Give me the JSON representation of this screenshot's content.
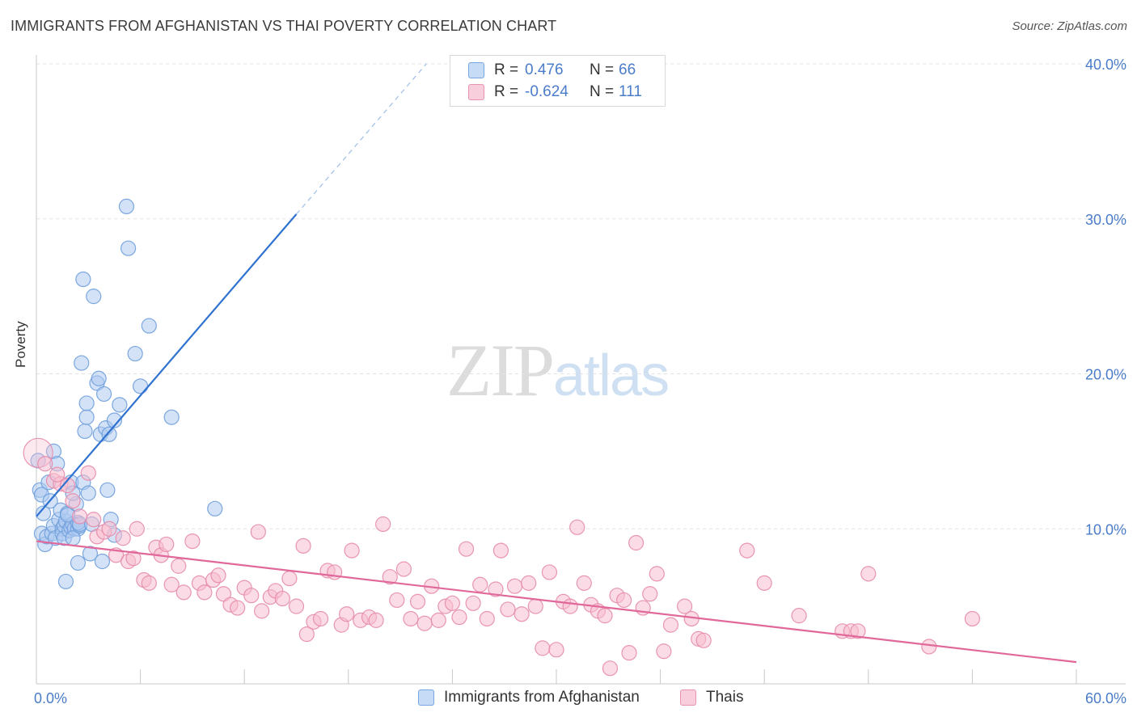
{
  "header": {
    "title": "IMMIGRANTS FROM AFGHANISTAN VS THAI POVERTY CORRELATION CHART",
    "source": "Source: ZipAtlas.com"
  },
  "watermark": {
    "part1": "ZIP",
    "part2": "atlas"
  },
  "legend": {
    "rows": [
      {
        "r_label": "R =",
        "r_value": "0.476",
        "n_label": "N =",
        "n_value": "66"
      },
      {
        "r_label": "R =",
        "r_value": "-0.624",
        "n_label": "N =",
        "n_value": "111"
      }
    ]
  },
  "colors": {
    "blue_fill": "#aecbf0",
    "blue_stroke": "#6f9fdc",
    "blue_line": "#2f72d0",
    "pink_fill": "#f7bdd0",
    "pink_stroke": "#e68bab",
    "pink_line": "#e0689a",
    "grid": "#e3e3e3",
    "axis_text": "#4a7cc9"
  },
  "chart_data": {
    "type": "scatter",
    "title": "IMMIGRANTS FROM AFGHANISTAN VS THAI POVERTY CORRELATION CHART",
    "xlabel": "",
    "ylabel": "Poverty",
    "xlim": [
      0,
      60
    ],
    "ylim": [
      0,
      40
    ],
    "x_tick_labels": [
      "0.0%",
      "60.0%"
    ],
    "y_ticks": [
      10,
      20,
      30,
      40
    ],
    "y_tick_labels": [
      "10.0%",
      "20.0%",
      "30.0%",
      "40.0%"
    ],
    "grid": true,
    "legend_position": "top-center",
    "series": [
      {
        "name": "Immigrants from Afghanistan",
        "color": "#aecbf0",
        "trend": {
          "x": [
            0,
            15
          ],
          "y": [
            10.8,
            30.3
          ],
          "dashed_to": [
            22.5,
            40.0
          ]
        },
        "points": [
          [
            0.1,
            14.4
          ],
          [
            0.2,
            12.5
          ],
          [
            0.3,
            12.2
          ],
          [
            0.3,
            9.7
          ],
          [
            0.4,
            11.0
          ],
          [
            0.5,
            9.0
          ],
          [
            0.6,
            9.5
          ],
          [
            0.7,
            13.0
          ],
          [
            0.8,
            11.8
          ],
          [
            0.9,
            9.7
          ],
          [
            1.0,
            15.0
          ],
          [
            1.0,
            10.2
          ],
          [
            1.1,
            9.4
          ],
          [
            1.2,
            14.2
          ],
          [
            1.3,
            10.6
          ],
          [
            1.4,
            11.2
          ],
          [
            1.5,
            10.0
          ],
          [
            1.5,
            9.7
          ],
          [
            1.6,
            10.2
          ],
          [
            1.6,
            9.4
          ],
          [
            1.7,
            10.5
          ],
          [
            1.8,
            11.0
          ],
          [
            1.9,
            9.9
          ],
          [
            1.7,
            6.6
          ],
          [
            2.0,
            10.1
          ],
          [
            2.1,
            10.3
          ],
          [
            2.2,
            10.0
          ],
          [
            2.3,
            11.6
          ],
          [
            2.4,
            10.0
          ],
          [
            2.1,
            9.4
          ],
          [
            2.0,
            13.0
          ],
          [
            2.1,
            12.3
          ],
          [
            2.5,
            10.2
          ],
          [
            2.6,
            20.7
          ],
          [
            2.4,
            7.8
          ],
          [
            2.4,
            10.4
          ],
          [
            2.5,
            10.3
          ],
          [
            2.7,
            26.1
          ],
          [
            2.7,
            13.0
          ],
          [
            2.8,
            16.3
          ],
          [
            2.9,
            17.2
          ],
          [
            2.9,
            18.1
          ],
          [
            3.1,
            8.4
          ],
          [
            3.2,
            10.3
          ],
          [
            3.3,
            25.0
          ],
          [
            3.5,
            19.4
          ],
          [
            3.6,
            19.7
          ],
          [
            3.7,
            16.1
          ],
          [
            3.8,
            7.9
          ],
          [
            3.9,
            18.7
          ],
          [
            4.0,
            16.5
          ],
          [
            4.1,
            12.5
          ],
          [
            4.2,
            16.1
          ],
          [
            4.3,
            10.6
          ],
          [
            4.5,
            17.0
          ],
          [
            4.5,
            9.6
          ],
          [
            4.8,
            18.0
          ],
          [
            5.2,
            30.8
          ],
          [
            5.3,
            28.1
          ],
          [
            5.7,
            21.3
          ],
          [
            6.0,
            19.2
          ],
          [
            6.5,
            23.1
          ],
          [
            7.8,
            17.2
          ],
          [
            10.3,
            11.3
          ],
          [
            3.0,
            12.3
          ],
          [
            1.8,
            10.9
          ]
        ]
      },
      {
        "name": "Thais",
        "color": "#f7bdd0",
        "trend": {
          "x": [
            0,
            60
          ],
          "y": [
            9.2,
            1.4
          ]
        },
        "points": [
          [
            0.1,
            14.9
          ],
          [
            0.5,
            14.2
          ],
          [
            1.0,
            13.1
          ],
          [
            1.4,
            12.9
          ],
          [
            1.8,
            12.8
          ],
          [
            1.2,
            13.5
          ],
          [
            3.0,
            13.6
          ],
          [
            2.1,
            11.8
          ],
          [
            2.5,
            10.8
          ],
          [
            3.3,
            10.6
          ],
          [
            3.5,
            9.5
          ],
          [
            3.9,
            9.8
          ],
          [
            4.2,
            10.0
          ],
          [
            4.6,
            8.3
          ],
          [
            5.0,
            9.4
          ],
          [
            5.3,
            7.9
          ],
          [
            5.6,
            8.1
          ],
          [
            5.8,
            10.0
          ],
          [
            6.2,
            6.7
          ],
          [
            6.5,
            6.5
          ],
          [
            6.9,
            8.8
          ],
          [
            7.2,
            8.3
          ],
          [
            7.5,
            9.0
          ],
          [
            7.8,
            6.4
          ],
          [
            8.2,
            7.6
          ],
          [
            8.5,
            5.9
          ],
          [
            9.0,
            9.2
          ],
          [
            9.4,
            6.5
          ],
          [
            9.7,
            5.9
          ],
          [
            10.2,
            6.7
          ],
          [
            10.5,
            7.0
          ],
          [
            10.8,
            5.8
          ],
          [
            11.2,
            5.1
          ],
          [
            11.6,
            4.9
          ],
          [
            12.0,
            6.2
          ],
          [
            12.4,
            5.7
          ],
          [
            12.8,
            9.8
          ],
          [
            13.0,
            4.7
          ],
          [
            13.5,
            5.6
          ],
          [
            13.8,
            6.0
          ],
          [
            14.2,
            5.5
          ],
          [
            14.6,
            6.8
          ],
          [
            15.0,
            5.0
          ],
          [
            15.4,
            8.9
          ],
          [
            15.6,
            3.2
          ],
          [
            16.0,
            4.0
          ],
          [
            16.4,
            4.2
          ],
          [
            16.8,
            7.3
          ],
          [
            17.2,
            7.2
          ],
          [
            17.6,
            3.8
          ],
          [
            17.9,
            4.5
          ],
          [
            18.2,
            8.6
          ],
          [
            18.7,
            4.1
          ],
          [
            19.2,
            4.3
          ],
          [
            19.6,
            4.1
          ],
          [
            20.0,
            10.3
          ],
          [
            20.4,
            6.9
          ],
          [
            20.8,
            5.4
          ],
          [
            21.2,
            7.4
          ],
          [
            21.6,
            4.2
          ],
          [
            22.0,
            5.3
          ],
          [
            22.4,
            3.9
          ],
          [
            22.8,
            6.3
          ],
          [
            23.2,
            4.1
          ],
          [
            23.6,
            5.0
          ],
          [
            24.0,
            5.2
          ],
          [
            24.4,
            4.3
          ],
          [
            24.8,
            8.7
          ],
          [
            25.2,
            5.2
          ],
          [
            25.6,
            6.4
          ],
          [
            26.0,
            4.2
          ],
          [
            26.5,
            6.1
          ],
          [
            26.8,
            8.6
          ],
          [
            27.2,
            4.8
          ],
          [
            27.6,
            6.3
          ],
          [
            28.0,
            4.5
          ],
          [
            28.4,
            6.5
          ],
          [
            28.8,
            5.0
          ],
          [
            29.2,
            2.3
          ],
          [
            29.6,
            7.2
          ],
          [
            30.0,
            2.2
          ],
          [
            30.4,
            5.3
          ],
          [
            30.8,
            5.0
          ],
          [
            31.2,
            10.1
          ],
          [
            31.6,
            6.5
          ],
          [
            32.0,
            5.1
          ],
          [
            32.4,
            4.7
          ],
          [
            32.8,
            4.4
          ],
          [
            33.1,
            1.0
          ],
          [
            33.5,
            5.7
          ],
          [
            33.9,
            5.4
          ],
          [
            34.2,
            2.0
          ],
          [
            34.6,
            9.1
          ],
          [
            35.0,
            4.9
          ],
          [
            35.4,
            5.8
          ],
          [
            35.8,
            7.1
          ],
          [
            36.2,
            2.1
          ],
          [
            36.6,
            3.8
          ],
          [
            37.4,
            5.0
          ],
          [
            37.8,
            4.2
          ],
          [
            38.2,
            2.9
          ],
          [
            38.5,
            2.8
          ],
          [
            41.0,
            8.6
          ],
          [
            42.0,
            6.5
          ],
          [
            44.0,
            4.4
          ],
          [
            46.5,
            3.4
          ],
          [
            47.0,
            3.4
          ],
          [
            47.4,
            3.4
          ],
          [
            48.0,
            7.1
          ],
          [
            51.5,
            2.4
          ],
          [
            54.0,
            4.2
          ]
        ]
      }
    ]
  },
  "bottom_legend": {
    "items": [
      {
        "label": "Immigrants from Afghanistan"
      },
      {
        "label": "Thais"
      }
    ]
  }
}
